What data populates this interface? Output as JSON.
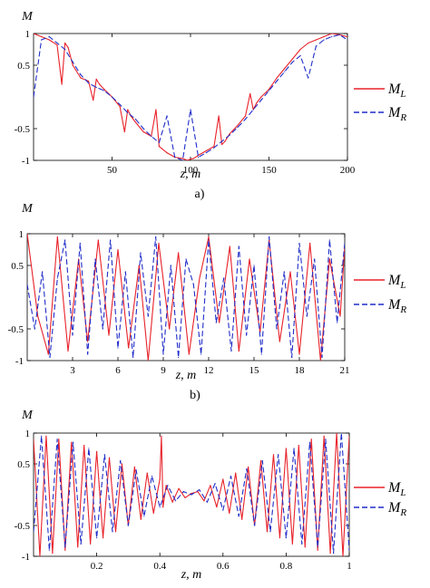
{
  "chart_data": [
    {
      "type": "line",
      "title": "",
      "ylabel": "M",
      "xlabel": "z, m",
      "caption": "a)",
      "xlim": [
        0,
        200
      ],
      "ylim": [
        -1,
        1
      ],
      "xticks": [
        50,
        100,
        150,
        200
      ],
      "xtick_labels": [
        "50",
        "100",
        "150",
        "200"
      ],
      "yticks": [
        1,
        0.5,
        -0.5,
        -1
      ],
      "ytick_labels": [
        "1",
        "0.5",
        "-0.5",
        "-1"
      ],
      "legend_position": "right",
      "series": [
        {
          "name": "M_L",
          "legend_main": "M",
          "legend_sub": "L",
          "color": "#e8222a",
          "dash": "solid",
          "x": [
            0,
            5,
            10,
            15,
            18,
            20,
            22,
            25,
            30,
            35,
            38,
            40,
            42,
            45,
            50,
            55,
            58,
            60,
            62,
            65,
            70,
            75,
            78,
            80,
            82,
            85,
            90,
            95,
            98,
            100,
            102,
            105,
            110,
            115,
            118,
            120,
            122,
            125,
            130,
            135,
            138,
            140,
            142,
            145,
            150,
            155,
            160,
            165,
            170,
            175,
            180,
            185,
            190,
            195,
            200
          ],
          "y": [
            1.0,
            0.95,
            0.9,
            0.82,
            0.2,
            0.85,
            0.78,
            0.5,
            0.3,
            0.25,
            -0.05,
            0.28,
            0.2,
            0.12,
            0.0,
            -0.15,
            -0.55,
            -0.2,
            -0.3,
            -0.4,
            -0.55,
            -0.62,
            -0.2,
            -0.78,
            -0.82,
            -0.88,
            -0.95,
            -0.97,
            -1.0,
            -0.98,
            -0.97,
            -0.92,
            -0.85,
            -0.78,
            -0.3,
            -0.75,
            -0.7,
            -0.58,
            -0.45,
            -0.3,
            0.05,
            -0.2,
            -0.1,
            0.0,
            0.12,
            0.3,
            0.45,
            0.6,
            0.75,
            0.85,
            0.9,
            0.95,
            1.0,
            0.98,
            0.95
          ]
        },
        {
          "name": "M_R",
          "legend_main": "M",
          "legend_sub": "R",
          "color": "#1f2dc8",
          "dash": "dashed",
          "x": [
            0,
            5,
            10,
            15,
            20,
            25,
            30,
            35,
            40,
            45,
            50,
            55,
            60,
            65,
            70,
            75,
            80,
            85,
            90,
            95,
            100,
            105,
            110,
            115,
            120,
            125,
            130,
            135,
            140,
            145,
            150,
            155,
            160,
            165,
            170,
            175,
            180,
            185,
            190,
            195,
            200
          ],
          "y": [
            0.0,
            0.9,
            0.95,
            0.85,
            0.75,
            0.55,
            0.35,
            0.22,
            0.15,
            0.1,
            0.0,
            -0.12,
            -0.25,
            -0.35,
            -0.5,
            -0.62,
            -0.72,
            -0.3,
            -0.95,
            -1.0,
            -0.2,
            -0.95,
            -0.88,
            -0.8,
            -0.7,
            -0.6,
            -0.48,
            -0.35,
            -0.2,
            -0.05,
            0.1,
            0.25,
            0.4,
            0.55,
            0.65,
            0.3,
            0.8,
            0.9,
            0.95,
            0.98,
            0.9
          ]
        }
      ]
    },
    {
      "type": "line",
      "title": "",
      "ylabel": "M",
      "xlabel": "z, m",
      "caption": "b)",
      "xlim": [
        0,
        21
      ],
      "ylim": [
        -1,
        1
      ],
      "xticks": [
        3,
        6,
        9,
        12,
        15,
        18,
        21
      ],
      "xtick_labels": [
        "3",
        "6",
        "9",
        "12",
        "15",
        "18",
        "21"
      ],
      "yticks": [
        1,
        0.5,
        -0.5,
        -1
      ],
      "ytick_labels": [
        "1",
        "0.5",
        "-0.5",
        "-1"
      ],
      "legend_position": "right",
      "series": [
        {
          "name": "M_L",
          "legend_main": "M",
          "legend_sub": "L",
          "color": "#e8222a",
          "dash": "solid",
          "x": [
            0,
            0.7,
            1.4,
            2.0,
            2.7,
            3.4,
            4.0,
            4.7,
            5.4,
            6.0,
            6.7,
            7.4,
            8.0,
            8.7,
            9.4,
            10.0,
            10.7,
            11.4,
            12.0,
            12.7,
            13.4,
            14.0,
            14.7,
            15.4,
            16.0,
            16.7,
            17.4,
            18.0,
            18.7,
            19.4,
            20.0,
            20.7,
            21.0
          ],
          "y": [
            1.0,
            -0.3,
            -0.9,
            0.95,
            -0.85,
            0.6,
            -0.7,
            0.9,
            -0.6,
            0.75,
            -0.8,
            0.5,
            -1.0,
            0.85,
            -0.5,
            0.7,
            -0.9,
            0.3,
            0.95,
            -0.4,
            0.8,
            -0.85,
            0.6,
            -0.55,
            0.9,
            -0.7,
            0.4,
            -0.9,
            0.85,
            -1.0,
            0.6,
            -0.3,
            0.8
          ]
        },
        {
          "name": "M_R",
          "legend_main": "M",
          "legend_sub": "R",
          "color": "#1f2dc8",
          "dash": "dashed",
          "x": [
            0,
            0.5,
            1.0,
            1.5,
            2.0,
            2.5,
            3.0,
            3.5,
            4.0,
            4.5,
            5.0,
            5.5,
            6.0,
            6.5,
            7.0,
            7.5,
            8.0,
            8.5,
            9.0,
            9.5,
            10.0,
            10.5,
            11.0,
            11.5,
            12.0,
            12.5,
            13.0,
            13.5,
            14.0,
            14.5,
            15.0,
            15.5,
            16.0,
            16.5,
            17.0,
            17.5,
            18.0,
            18.5,
            19.0,
            19.5,
            20.0,
            20.5,
            21.0
          ],
          "y": [
            0.2,
            -0.5,
            0.4,
            -0.95,
            0.3,
            0.9,
            -0.6,
            0.85,
            -0.9,
            0.6,
            -0.5,
            0.9,
            -0.8,
            0.4,
            -0.95,
            0.7,
            -0.3,
            0.95,
            -0.9,
            0.5,
            -0.95,
            0.6,
            0.2,
            -0.9,
            0.9,
            -0.4,
            0.3,
            -0.85,
            0.8,
            -0.6,
            0.5,
            -0.9,
            0.95,
            -0.5,
            0.4,
            -0.95,
            0.85,
            -0.3,
            0.6,
            -0.95,
            0.9,
            -0.4,
            0.85
          ]
        }
      ]
    },
    {
      "type": "line",
      "title": "",
      "ylabel": "M",
      "xlabel": "z, m",
      "caption": "",
      "xlim": [
        0,
        1
      ],
      "ylim": [
        -1,
        1
      ],
      "xticks": [
        0.2,
        0.4,
        0.6,
        0.8,
        1
      ],
      "xtick_labels": [
        "0.2",
        "0.4",
        "0.6",
        "0.8",
        "1"
      ],
      "yticks": [
        1,
        0.5,
        -0.5,
        -1
      ],
      "ytick_labels": [
        "1",
        "0.5",
        "-0.5",
        "-1"
      ],
      "legend_position": "right",
      "series": [
        {
          "name": "M_L",
          "legend_main": "M",
          "legend_sub": "L",
          "color": "#e8222a",
          "dash": "solid",
          "x": [
            0.0,
            0.02,
            0.04,
            0.06,
            0.08,
            0.1,
            0.12,
            0.14,
            0.16,
            0.18,
            0.2,
            0.22,
            0.24,
            0.26,
            0.28,
            0.3,
            0.32,
            0.34,
            0.36,
            0.38,
            0.4,
            0.405,
            0.41,
            0.42,
            0.44,
            0.46,
            0.48,
            0.5,
            0.52,
            0.54,
            0.56,
            0.58,
            0.6,
            0.62,
            0.64,
            0.66,
            0.68,
            0.7,
            0.72,
            0.74,
            0.76,
            0.78,
            0.8,
            0.82,
            0.84,
            0.86,
            0.88,
            0.9,
            0.92,
            0.94,
            0.96,
            0.98,
            1.0
          ],
          "y": [
            0.9,
            -1.0,
            0.95,
            -0.95,
            0.9,
            -0.9,
            0.85,
            -0.85,
            0.8,
            -0.8,
            0.7,
            -0.7,
            0.6,
            -0.6,
            0.5,
            -0.5,
            0.45,
            -0.4,
            0.35,
            -0.3,
            0.25,
            0.95,
            -0.2,
            0.15,
            -0.12,
            0.1,
            -0.05,
            0.02,
            0.05,
            -0.1,
            0.15,
            -0.2,
            0.25,
            -0.3,
            0.35,
            -0.4,
            0.45,
            -0.5,
            0.55,
            -0.6,
            0.65,
            -0.7,
            0.75,
            -0.8,
            0.8,
            -0.85,
            0.9,
            -0.9,
            0.95,
            -0.95,
            1.0,
            -1.0,
            0.95
          ]
        },
        {
          "name": "M_R",
          "legend_main": "M",
          "legend_sub": "R",
          "color": "#1f2dc8",
          "dash": "dashed",
          "x": [
            0.0,
            0.025,
            0.05,
            0.075,
            0.1,
            0.125,
            0.15,
            0.175,
            0.2,
            0.225,
            0.25,
            0.275,
            0.3,
            0.325,
            0.35,
            0.375,
            0.4,
            0.425,
            0.45,
            0.475,
            0.5,
            0.525,
            0.55,
            0.575,
            0.6,
            0.625,
            0.65,
            0.675,
            0.7,
            0.725,
            0.75,
            0.775,
            0.8,
            0.825,
            0.85,
            0.875,
            0.9,
            0.925,
            0.95,
            0.975,
            1.0
          ],
          "y": [
            -0.6,
            0.95,
            -0.9,
            0.9,
            -0.85,
            0.85,
            -0.8,
            0.75,
            -0.7,
            0.65,
            -0.6,
            0.55,
            -0.5,
            0.4,
            -0.35,
            0.3,
            -0.2,
            0.15,
            -0.1,
            0.05,
            0.0,
            0.08,
            -0.12,
            0.18,
            -0.25,
            0.3,
            -0.35,
            0.42,
            -0.5,
            0.55,
            -0.6,
            0.65,
            -0.7,
            0.75,
            -0.8,
            0.85,
            -0.85,
            0.9,
            -0.95,
            1.0,
            -0.9
          ]
        }
      ]
    }
  ]
}
